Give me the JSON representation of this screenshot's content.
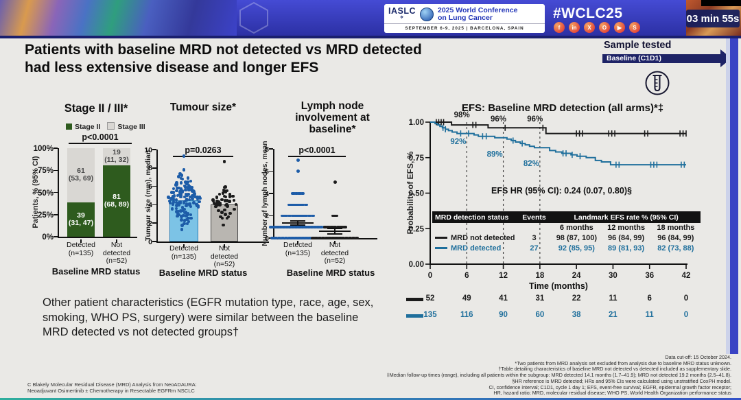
{
  "header": {
    "logo_text": "IASLC",
    "conference_line1": "2025 World Conference",
    "conference_line2": "on Lung Cancer",
    "conference_dates": "SEPTEMBER 6-9, 2025   |   BARCELONA, SPAIN",
    "hashtag": "#WCLC25",
    "social_icons": [
      "facebook-icon",
      "linkedin-icon",
      "x-icon",
      "instagram-icon",
      "youtube-icon",
      "share-icon"
    ],
    "social_glyphs": [
      "f",
      "in",
      "X",
      "O",
      "▶",
      "S"
    ],
    "timer": "03 min 55s"
  },
  "slide": {
    "title": "Patients with baseline MRD not detected vs MRD detected\nhad less extensive disease and longer EFS",
    "sample_tested": {
      "label": "Sample tested",
      "arrow_label": "Baseline (C1D1)"
    },
    "summary_text": "Other patient characteristics (EGFR mutation type, race, age, sex, smoking, WHO PS, surgery) were similar between the baseline MRD detected vs not detected groups†",
    "credits": "C Blakely  Molecular Residual Disease (MRD) Analysis from NeoADAURA:\nNeoadjuvant Osimertinib ± Chemotherapy in Resectable EGFRm NSCLC",
    "footnotes": [
      "Data cut-off: 15 October 2024.",
      "*Two patients from MRD analysis set excluded from analysis due to baseline MRD status unknown.",
      "†Table detailing characteristics of baseline MRD not detected vs detected included as supplementary slide.",
      "‡Median follow-up times (range), including all patients within the subgroup: MRD detected 14.1 months (1.7–41.9); MRD not detected 19.2 months (2.5–41.8).",
      "§HR reference is MRD detected; HRs and 95% CIs were calculated using unstratified CoxPH model.",
      "CI, confidence interval; C1D1, cycle 1 day 1; EFS, event-free survival; EGFR, epidermal growth factor receptor;",
      "HR, hazard ratio; MRD, molecular residual disease; WHO PS, World Health Organization performance status"
    ]
  },
  "chart_data": [
    {
      "type": "bar",
      "title": "Stage II / III*",
      "p_value": "p<0.0001",
      "ylabel": "Patients, % (95% CI)",
      "yticks": [
        "0%",
        "25%",
        "50%",
        "75%",
        "100%"
      ],
      "ylim": [
        0,
        100
      ],
      "legend": [
        {
          "label": "Stage II",
          "color": "#2e5b1e"
        },
        {
          "label": "Stage III",
          "color": "#d9d7d3"
        }
      ],
      "categories": [
        "Detected\n(n=135)",
        "Not\ndetected\n(n=52)"
      ],
      "xlabel": "Baseline MRD status",
      "stacks": [
        {
          "category": "Detected (n=135)",
          "segments": [
            {
              "name": "Stage II",
              "value": 39,
              "label": "39\n(31, 47)"
            },
            {
              "name": "Stage III",
              "value": 61,
              "label": "61\n(53, 69)"
            }
          ]
        },
        {
          "category": "Not detected (n=52)",
          "segments": [
            {
              "name": "Stage II",
              "value": 81,
              "label": "81\n(68, 89)"
            },
            {
              "name": "Stage III",
              "value": 19,
              "label": "19\n(11, 32)"
            }
          ]
        }
      ]
    },
    {
      "type": "scatter",
      "title": "Tumour size*",
      "p_value": "p=0.0263",
      "ylabel": "Tumour size (mm), median",
      "ylim": [
        0,
        10
      ],
      "yticks": [
        0,
        2,
        4,
        6,
        8,
        10
      ],
      "categories": [
        "Detected\n(n=135)",
        "Not\ndetected\n(n=52)"
      ],
      "xlabel": "Baseline MRD status",
      "groups": [
        {
          "name": "Detected",
          "n": 135,
          "median": 4.5,
          "spread_sd": 1.35,
          "outliers": [
            9.3
          ],
          "bar_color": "#7cc3e6",
          "bar_border": "#2a7db5",
          "dot_color": "#1d5ca8"
        },
        {
          "name": "Not detected",
          "n": 52,
          "median": 4.0,
          "spread_sd": 0.95,
          "outliers": [
            8.7
          ],
          "bar_color": "#b9b6b1",
          "bar_border": "#4a4a4a",
          "dot_color": "#1c1c1c"
        }
      ]
    },
    {
      "type": "dot-plot",
      "title": "Lymph node\ninvolvement at baseline*",
      "p_value": "p<0.0001",
      "ylabel": "Number of lymph nodes, mean",
      "ylim": [
        0,
        8
      ],
      "yticks": [
        0,
        2,
        4,
        6,
        8
      ],
      "categories": [
        "Detected\n(n=135)",
        "Not\ndetected\n(n=52)"
      ],
      "xlabel": "Baseline MRD status",
      "groups": [
        {
          "name": "Detected",
          "mean": 1.35,
          "se": 0.18,
          "color": "#1d5ca8",
          "clusters": [
            {
              "value": 0,
              "count": 16
            },
            {
              "value": 1,
              "count": 18
            },
            {
              "value": 2,
              "count": 10
            },
            {
              "value": 3,
              "count": 6
            },
            {
              "value": 4,
              "count": 4
            },
            {
              "value": 6,
              "count": 1
            },
            {
              "value": 7,
              "count": 1
            }
          ]
        },
        {
          "name": "Not detected",
          "mean": 0.62,
          "se": 0.22,
          "color": "#1c1c1c",
          "clusters": [
            {
              "value": 0,
              "count": 14
            },
            {
              "value": 1,
              "count": 7
            },
            {
              "value": 2,
              "count": 2
            },
            {
              "value": 5,
              "count": 1
            }
          ]
        }
      ]
    },
    {
      "type": "line",
      "title": "EFS: Baseline MRD detection (all arms)*‡",
      "ylabel": "Probability of EFS, %",
      "xlabel": "Time (months)",
      "yticks": [
        "1.00",
        "0.75",
        "0.50",
        "0.25",
        "0.00"
      ],
      "xticks": [
        0,
        6,
        12,
        18,
        24,
        30,
        36,
        42
      ],
      "xlim": [
        0,
        42
      ],
      "ylim": [
        0,
        1
      ],
      "hr_text": "EFS HR (95% CI): 0.24 (0.07, 0.80)§",
      "dashed_x": [
        6,
        12,
        18
      ],
      "table": {
        "header_status": "MRD detection status",
        "header_events": "Events",
        "header_landmark": "Landmark EFS rate % (95% CI)",
        "subheaders": [
          "6 months",
          "12 months",
          "18 months"
        ]
      },
      "series": [
        {
          "name": "MRD not detected",
          "color": "#1b1b1b",
          "events": "3",
          "landmark": [
            "98 (87, 100)",
            "96 (84, 99)",
            "96 (84, 99)"
          ],
          "at_risk": [
            52,
            49,
            41,
            31,
            22,
            11,
            6,
            0
          ],
          "steps": [
            [
              0,
              1.0
            ],
            [
              3.5,
              1.0
            ],
            [
              3.5,
              0.98
            ],
            [
              9.5,
              0.98
            ],
            [
              9.5,
              0.96
            ],
            [
              19,
              0.96
            ],
            [
              19,
              0.92
            ],
            [
              42,
              0.92
            ]
          ],
          "censors": [
            1.0,
            1.4,
            1.8,
            2.2,
            7.0,
            7.5,
            12.3,
            18.5,
            24.0,
            24.5,
            25.0,
            29.3,
            29.8,
            30.3,
            35.2,
            35.7,
            41.0,
            41.5,
            42.0
          ],
          "annotations": [
            {
              "label": "98%",
              "x": 5.2,
              "y": 1.035
            },
            {
              "label": "96%",
              "x": 11.2,
              "y": 1.005
            },
            {
              "label": "96%",
              "x": 17.2,
              "y": 1.005
            }
          ]
        },
        {
          "name": "MRD detected",
          "color": "#1f6f9c",
          "events": "27",
          "landmark": [
            "92 (85, 95)",
            "89 (81, 93)",
            "82 (73, 88)"
          ],
          "at_risk": [
            135,
            116,
            90,
            60,
            38,
            21,
            11,
            0
          ],
          "steps": [
            [
              0,
              1.0
            ],
            [
              0.8,
              1.0
            ],
            [
              0.8,
              0.99
            ],
            [
              1.2,
              0.99
            ],
            [
              1.2,
              0.98
            ],
            [
              1.6,
              0.98
            ],
            [
              1.6,
              0.97
            ],
            [
              2.0,
              0.97
            ],
            [
              2.0,
              0.96
            ],
            [
              2.5,
              0.96
            ],
            [
              2.5,
              0.95
            ],
            [
              3.0,
              0.95
            ],
            [
              3.0,
              0.94
            ],
            [
              3.6,
              0.94
            ],
            [
              3.6,
              0.93
            ],
            [
              4.4,
              0.93
            ],
            [
              4.4,
              0.92
            ],
            [
              7.2,
              0.92
            ],
            [
              7.2,
              0.91
            ],
            [
              7.9,
              0.91
            ],
            [
              7.9,
              0.9
            ],
            [
              10.6,
              0.9
            ],
            [
              10.6,
              0.89
            ],
            [
              12.6,
              0.89
            ],
            [
              12.6,
              0.88
            ],
            [
              13.3,
              0.88
            ],
            [
              13.3,
              0.87
            ],
            [
              14.0,
              0.87
            ],
            [
              14.0,
              0.86
            ],
            [
              14.8,
              0.86
            ],
            [
              14.8,
              0.85
            ],
            [
              15.6,
              0.85
            ],
            [
              15.6,
              0.84
            ],
            [
              16.3,
              0.84
            ],
            [
              16.3,
              0.83
            ],
            [
              17.1,
              0.83
            ],
            [
              17.1,
              0.82
            ],
            [
              19.6,
              0.82
            ],
            [
              19.6,
              0.8
            ],
            [
              20.6,
              0.8
            ],
            [
              20.6,
              0.79
            ],
            [
              21.6,
              0.79
            ],
            [
              21.6,
              0.78
            ],
            [
              23.1,
              0.78
            ],
            [
              23.1,
              0.77
            ],
            [
              24.1,
              0.77
            ],
            [
              24.1,
              0.76
            ],
            [
              25.6,
              0.76
            ],
            [
              25.6,
              0.75
            ],
            [
              27.1,
              0.75
            ],
            [
              27.1,
              0.73
            ],
            [
              28.1,
              0.73
            ],
            [
              28.1,
              0.72
            ],
            [
              29.6,
              0.72
            ],
            [
              29.6,
              0.7
            ],
            [
              42,
              0.7
            ]
          ],
          "censors": [
            2.1,
            2.5,
            5.0,
            6.3,
            8.6,
            9.2,
            13.6,
            15.1,
            21.8,
            22.3,
            23.3,
            24.6,
            30.5,
            31.0,
            36.2,
            36.7,
            37.2,
            41.2,
            41.7
          ],
          "annotations": [
            {
              "label": "92%",
              "x": 4.6,
              "y": 0.845
            },
            {
              "label": "89%",
              "x": 10.6,
              "y": 0.755
            },
            {
              "label": "82%",
              "x": 16.6,
              "y": 0.69
            }
          ]
        }
      ]
    }
  ]
}
